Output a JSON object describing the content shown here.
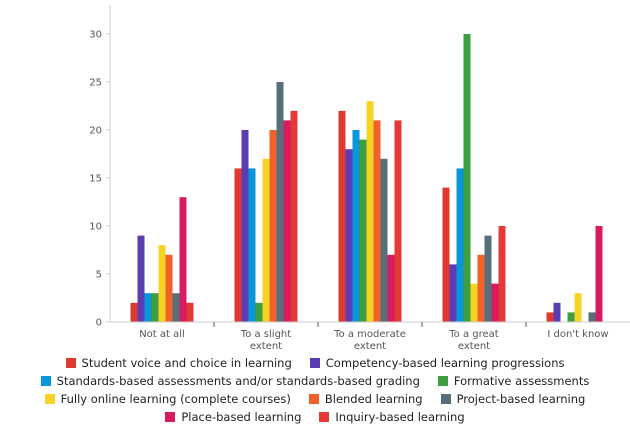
{
  "chart_data": {
    "type": "bar",
    "title": "",
    "xlabel": "",
    "ylabel": "",
    "ylim": [
      0,
      33
    ],
    "yticks": [
      0,
      5,
      10,
      15,
      20,
      25,
      30
    ],
    "categories": [
      [
        "Not at all"
      ],
      [
        "To a slight",
        "extent"
      ],
      [
        "To a moderate",
        "extent"
      ],
      [
        "To a great",
        "extent"
      ],
      [
        "I don't know"
      ]
    ],
    "series": [
      {
        "name": "Student voice and choice in learning",
        "color": "#e03a2e",
        "values": [
          2,
          16,
          22,
          14,
          1
        ]
      },
      {
        "name": "Competency-based learning progressions",
        "color": "#5b3cb4",
        "values": [
          9,
          20,
          18,
          6,
          2
        ]
      },
      {
        "name": "Standards-based assessments and/or standards-based grading",
        "color": "#0a97d9",
        "values": [
          3,
          16,
          20,
          16,
          0
        ]
      },
      {
        "name": "Formative assessments",
        "color": "#3f9e3f",
        "values": [
          3,
          2,
          19,
          30,
          1
        ]
      },
      {
        "name": "Fully online learning (complete courses)",
        "color": "#f5d327",
        "values": [
          8,
          17,
          23,
          4,
          3
        ]
      },
      {
        "name": "Blended learning",
        "color": "#f0622a",
        "values": [
          7,
          20,
          21,
          7,
          0
        ]
      },
      {
        "name": "Project-based learning",
        "color": "#566f7a",
        "values": [
          3,
          25,
          17,
          9,
          1
        ]
      },
      {
        "name": "Place-based learning",
        "color": "#d81b60",
        "values": [
          13,
          21,
          7,
          4,
          10
        ]
      },
      {
        "name": "Inquiry-based learning",
        "color": "#e53935",
        "values": [
          2,
          22,
          21,
          10,
          0
        ]
      }
    ]
  }
}
